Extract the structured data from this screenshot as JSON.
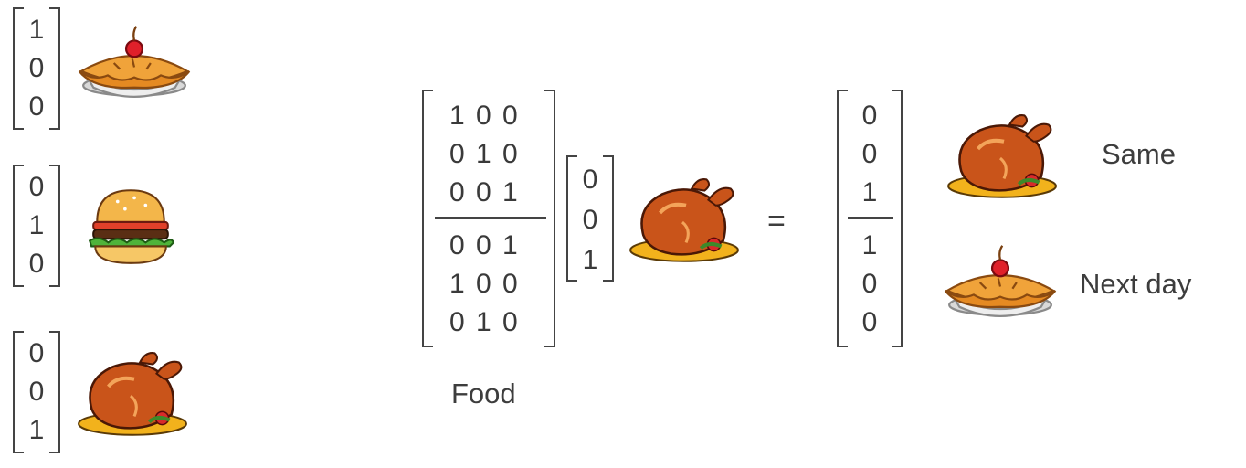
{
  "vectors": {
    "pie": [
      "1",
      "0",
      "0"
    ],
    "burger": [
      "0",
      "1",
      "0"
    ],
    "turkey": [
      "0",
      "0",
      "1"
    ]
  },
  "matrix": {
    "top_rows": [
      "1 0 0",
      "0 1 0",
      "0 0 1"
    ],
    "bottom_rows": [
      "0 0 1",
      "1 0 0",
      "0 1 0"
    ],
    "label": "Food"
  },
  "input_vector": [
    "0",
    "0",
    "1"
  ],
  "equals": "=",
  "result": {
    "top": [
      "0",
      "0",
      "1"
    ],
    "bottom": [
      "1",
      "0",
      "0"
    ],
    "same_label": "Same",
    "next_label": "Next day"
  },
  "icons": [
    "pie-icon",
    "burger-icon",
    "turkey-icon"
  ]
}
